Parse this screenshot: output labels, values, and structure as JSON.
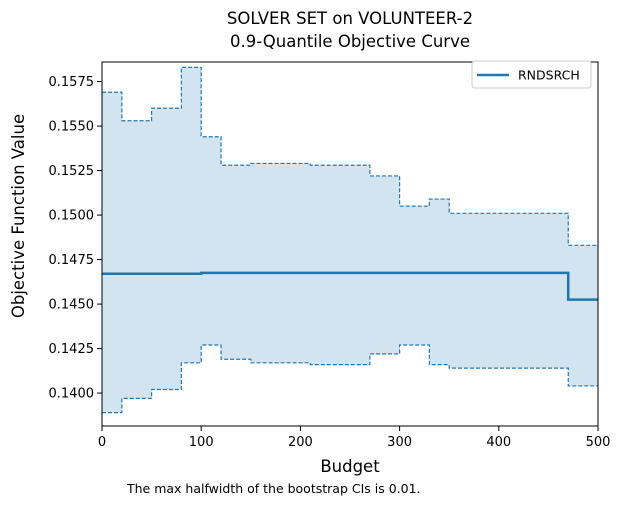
{
  "chart_data": {
    "type": "line",
    "title_line1": "SOLVER SET on VOLUNTEER-2",
    "title_line2": "0.9-Quantile Objective Curve",
    "xlabel": "Budget",
    "ylabel": "Objective Function Value",
    "xlim": [
      0,
      500
    ],
    "ylim": [
      0.13815,
      0.1586
    ],
    "x_ticks": [
      0,
      100,
      200,
      300,
      400,
      500
    ],
    "x_tick_labels": [
      "0",
      "100",
      "200",
      "300",
      "400",
      "500"
    ],
    "y_ticks": [
      0.14,
      0.1425,
      0.145,
      0.1475,
      0.15,
      0.1525,
      0.155,
      0.1575
    ],
    "y_tick_labels": [
      "0.1400",
      "0.1425",
      "0.1450",
      "0.1475",
      "0.1500",
      "0.1525",
      "0.1550",
      "0.1575"
    ],
    "grid": false,
    "legend_position": "top-right",
    "series": [
      {
        "name": "RNDSRCH",
        "color": "#1f77b4",
        "step": "post",
        "x": [
          0,
          100,
          470,
          500
        ],
        "y": [
          0.1467,
          0.14675,
          0.14525,
          0.14525
        ]
      }
    ],
    "ci": {
      "color": "#1f77b4",
      "fill_opacity": 0.2,
      "x": [
        0,
        20,
        50,
        80,
        100,
        120,
        150,
        210,
        270,
        300,
        330,
        350,
        470,
        500
      ],
      "upper": [
        0.1569,
        0.1553,
        0.156,
        0.1583,
        0.1544,
        0.1528,
        0.1529,
        0.1528,
        0.1522,
        0.1505,
        0.1509,
        0.1501,
        0.1483,
        0.1483
      ],
      "lower": [
        0.1389,
        0.1397,
        0.1402,
        0.1417,
        0.1427,
        0.1419,
        0.1417,
        0.1416,
        0.1422,
        0.1427,
        0.1416,
        0.1414,
        0.1404,
        0.1404
      ]
    },
    "annotation": "The max halfwidth of the bootstrap CIs is 0.01."
  }
}
